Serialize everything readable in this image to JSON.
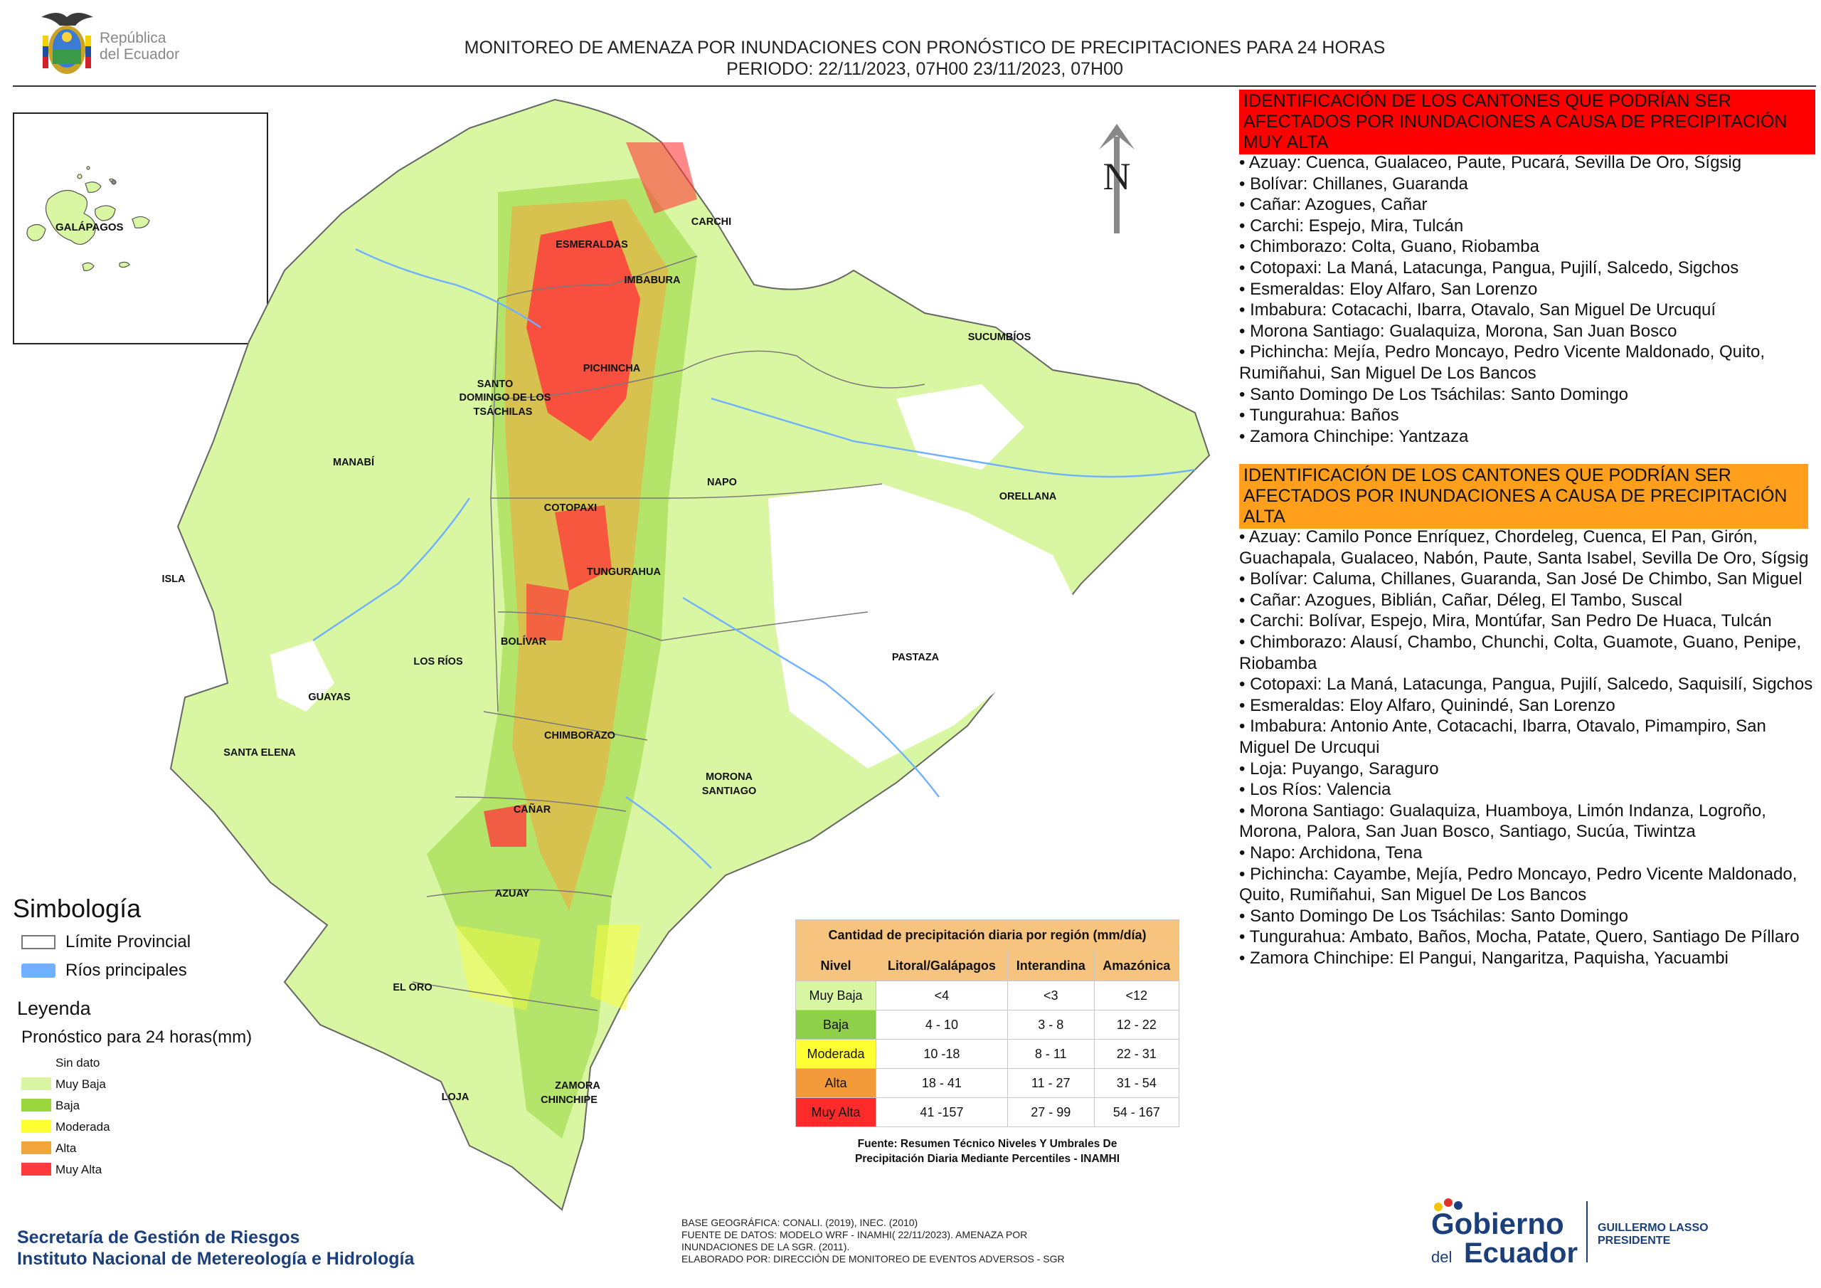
{
  "header": {
    "brand_line1": "República",
    "brand_line2": "del Ecuador",
    "title_line1": "MONITOREO DE AMENAZA POR INUNDACIONES  CON PRONÓSTICO DE  PRECIPITACIONES PARA 24 HORAS",
    "title_line2": "PERIODO: 22/11/2023, 07H00 23/11/2023, 07H00"
  },
  "map_labels": {
    "galapagos": "GALÁPAGOS",
    "esmeraldas": "ESMERALDAS",
    "carchi": "CARCHI",
    "imbabura": "IMBABURA",
    "sucumbios": "SUCUMBÍOS",
    "pichincha": "PICHINCHA",
    "santo_domingo_1": "SANTO",
    "santo_domingo_2": "DOMINGO DE LOS",
    "santo_domingo_3": "TSÁCHILAS",
    "manabi": "MANABÍ",
    "napo": "NAPO",
    "orellana": "ORELLANA",
    "cotopaxi": "COTOPAXI",
    "isla": "ISLA",
    "tungurahua": "TUNGURAHUA",
    "bolivar": "BOLÍVAR",
    "los_rios": "LOS RÍOS",
    "pastaza": "PASTAZA",
    "guayas": "GUAYAS",
    "chimborazo": "CHIMBORAZO",
    "santa_elena": "SANTA ELENA",
    "morona_1": "MORONA",
    "morona_2": "SANTIAGO",
    "canar": "CAÑAR",
    "azuay": "AZUAY",
    "el_oro": "EL ORO",
    "loja": "LOJA",
    "zamora_1": "ZAMORA",
    "zamora_2": "CHINCHIPE",
    "north": "N"
  },
  "very_high": {
    "heading": "IDENTIFICACIÓN DE LOS CANTONES QUE PODRÍAN SER AFECTADOS POR INUNDACIONES  A CAUSA DE PRECIPITACIÓN MUY ALTA",
    "items": [
      "• Azuay: Cuenca, Gualaceo, Paute, Pucará, Sevilla De Oro, Sígsig",
      "• Bolívar: Chillanes, Guaranda",
      "• Cañar: Azogues, Cañar",
      "• Carchi: Espejo, Mira, Tulcán",
      "• Chimborazo: Colta, Guano, Riobamba",
      "• Cotopaxi: La Maná, Latacunga, Pangua, Pujilí, Salcedo, Sigchos",
      "• Esmeraldas: Eloy Alfaro, San Lorenzo",
      "• Imbabura: Cotacachi, Ibarra, Otavalo, San Miguel De Urcuquí",
      "• Morona Santiago: Gualaquiza, Morona, San Juan Bosco",
      "• Pichincha: Mejía, Pedro Moncayo, Pedro Vicente Maldonado, Quito, Rumiñahui, San Miguel De Los Bancos",
      "• Santo Domingo De Los Tsáchilas: Santo Domingo",
      "• Tungurahua: Baños",
      "• Zamora Chinchipe: Yantzaza"
    ]
  },
  "high": {
    "heading": "IDENTIFICACIÓN DE LOS CANTONES QUE  PODRÍAN SER AFECTADOS POR INUNDACIONES  A CAUSA DE PRECIPITACIÓN ALTA",
    "items": [
      "• Azuay: Camilo Ponce Enríquez, Chordeleg, Cuenca, El Pan, Girón, Guachapala, Gualaceo, Nabón, Paute, Santa Isabel, Sevilla De Oro, Sígsig",
      "• Bolívar: Caluma, Chillanes, Guaranda, San José De Chimbo, San Miguel",
      "• Cañar: Azogues, Biblián, Cañar, Déleg, El Tambo, Suscal",
      "• Carchi: Bolívar, Espejo, Mira, Montúfar, San Pedro De Huaca, Tulcán",
      "• Chimborazo: Alausí, Chambo, Chunchi, Colta, Guamote, Guano, Penipe, Riobamba",
      "• Cotopaxi: La Maná, Latacunga, Pangua, Pujilí, Salcedo, Saquisilí, Sigchos",
      "• Esmeraldas: Eloy Alfaro, Quinindé, San Lorenzo",
      "• Imbabura: Antonio Ante, Cotacachi, Ibarra, Otavalo, Pimampiro, San Miguel De Urcuqui",
      "• Loja: Puyango, Saraguro",
      "• Los Ríos: Valencia",
      "• Morona Santiago: Gualaquiza, Huamboya, Limón Indanza, Logroño, Morona, Palora, San Juan Bosco, Santiago, Sucúa, Tiwintza",
      "• Napo: Archidona, Tena",
      "• Pichincha: Cayambe, Mejía, Pedro Moncayo, Pedro Vicente Maldonado, Quito, Rumiñahui, San Miguel De Los Bancos",
      "• Santo Domingo De Los Tsáchilas: Santo Domingo",
      "• Tungurahua: Ambato, Baños, Mocha, Patate, Quero, Santiago De Píllaro",
      "• Zamora Chinchipe: El Pangui, Nangaritza, Paquisha, Yacuambi"
    ]
  },
  "symbology": {
    "title": "Simbología",
    "limit": "Límite Provincial",
    "rivers": "Ríos principales",
    "legend_title": "Leyenda",
    "forecast_title": "Pronóstico para 24 horas(mm)",
    "classes": [
      {
        "label": "Sin dato",
        "color": "#ffffff"
      },
      {
        "label": "Muy Baja",
        "color": "#d9f7a2"
      },
      {
        "label": "Baja",
        "color": "#98d63c"
      },
      {
        "label": "Moderada",
        "color": "#ffff33"
      },
      {
        "label": "Alta",
        "color": "#f2a53a"
      },
      {
        "label": "Muy Alta",
        "color": "#ff3b3b"
      }
    ]
  },
  "table": {
    "title": "Cantidad de precipitación diaria por región (mm/día)",
    "headers": [
      "Nivel",
      "Litoral/Galápagos",
      "Interandina",
      "Amazónica"
    ],
    "rows": [
      {
        "level": "Muy Baja",
        "color": "#d9f7a2",
        "values": [
          "<4",
          "<3",
          "<12"
        ]
      },
      {
        "level": "Baja",
        "color": "#8fd04a",
        "values": [
          "4 - 10",
          "3 - 8",
          "12 - 22"
        ]
      },
      {
        "level": "Moderada",
        "color": "#ffff33",
        "values": [
          "10 -18",
          "8 - 11",
          "22 - 31"
        ]
      },
      {
        "level": "Alta",
        "color": "#f29a3a",
        "values": [
          "18 - 41",
          "11 - 27",
          "31 - 54"
        ]
      },
      {
        "level": "Muy Alta",
        "color": "#ff2a2a",
        "values": [
          "41 -157",
          "27 - 99",
          "54 - 167"
        ]
      }
    ],
    "source_line1": "Fuente: Resumen Técnico Niveles Y Umbrales De",
    "source_line2": "Precipitación Diaria Mediante Percentiles - INAMHI"
  },
  "footer": {
    "org1": "Secretaría de Gestión de Riesgos",
    "org2": "Instituto Nacional de Metereología e Hidrología",
    "credit1": "BASE GEOGRÁFICA: CONALI. (2019), INEC. (2010)",
    "credit2": "FUENTE DE DATOS: MODELO WRF - INAMHI( 22/11/2023).  AMENAZA POR",
    "credit3": "INUNDACIONES DE LA SGR. (2011).",
    "credit4": "ELABORADO POR: DIRECCIÓN DE MONITOREO DE EVENTOS ADVERSOS - SGR",
    "gob1": "Gobierno",
    "gob2": "del",
    "gob3": "Ecuador",
    "pres1": "GUILLERMO LASSO",
    "pres2": "PRESIDENTE"
  }
}
